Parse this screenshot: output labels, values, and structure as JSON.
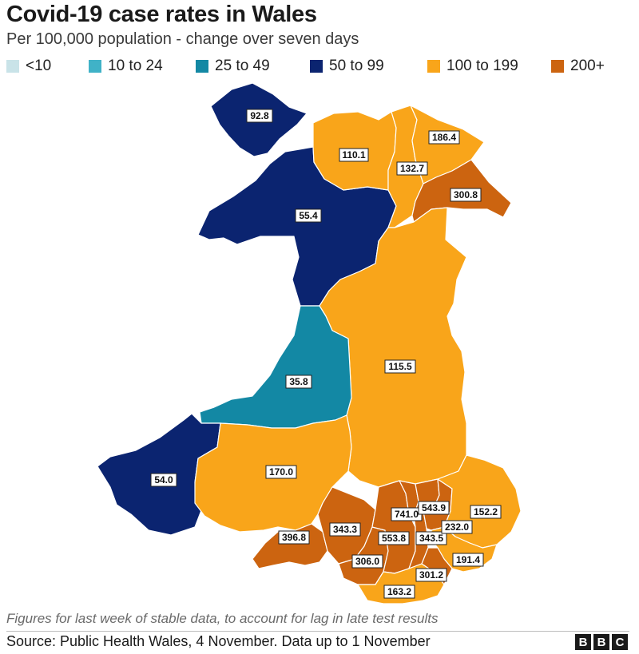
{
  "header": {
    "title": "Covid-19 case rates in Wales",
    "subtitle": "Per 100,000 population - change over seven days"
  },
  "colors": {
    "band_lt10": "#c9e3e8",
    "band_10_24": "#40b2c7",
    "band_25_49": "#1388a4",
    "band_50_99": "#0b2470",
    "band_100_199": "#f9a51a",
    "band_200_plus": "#cc6410",
    "borders": "#ffffff"
  },
  "legend": [
    {
      "label": "<10",
      "color": "#c9e3e8"
    },
    {
      "label": "10 to 24",
      "color": "#40b2c7"
    },
    {
      "label": "25 to 49",
      "color": "#1388a4"
    },
    {
      "label": "50 to 99",
      "color": "#0b2470"
    },
    {
      "label": "100 to 199",
      "color": "#f9a51a"
    },
    {
      "label": "200+",
      "color": "#cc6410"
    }
  ],
  "areas": [
    {
      "value": "92.8",
      "band": "50 to 99"
    },
    {
      "value": "110.1",
      "band": "100 to 199"
    },
    {
      "value": "186.4",
      "band": "100 to 199"
    },
    {
      "value": "132.7",
      "band": "100 to 199"
    },
    {
      "value": "300.8",
      "band": "200+"
    },
    {
      "value": "55.4",
      "band": "50 to 99"
    },
    {
      "value": "115.5",
      "band": "100 to 199"
    },
    {
      "value": "35.8",
      "band": "25 to 49"
    },
    {
      "value": "54.0",
      "band": "50 to 99"
    },
    {
      "value": "170.0",
      "band": "100 to 199"
    },
    {
      "value": "396.8",
      "band": "200+"
    },
    {
      "value": "343.3",
      "band": "200+"
    },
    {
      "value": "741.0",
      "band": "200+"
    },
    {
      "value": "543.9",
      "band": "200+"
    },
    {
      "value": "152.2",
      "band": "100 to 199"
    },
    {
      "value": "553.8",
      "band": "200+"
    },
    {
      "value": "343.5",
      "band": "200+"
    },
    {
      "value": "232.0",
      "band": "200+"
    },
    {
      "value": "306.0",
      "band": "200+"
    },
    {
      "value": "191.4",
      "band": "100 to 199"
    },
    {
      "value": "301.2",
      "band": "200+"
    },
    {
      "value": "163.2",
      "band": "100 to 199"
    }
  ],
  "footer": {
    "note": "Figures for last week of stable data, to account for lag in late test results",
    "source": "Source: Public Health Wales, 4 November. Data up to 1 November",
    "logo_letters": [
      "B",
      "B",
      "C"
    ]
  }
}
